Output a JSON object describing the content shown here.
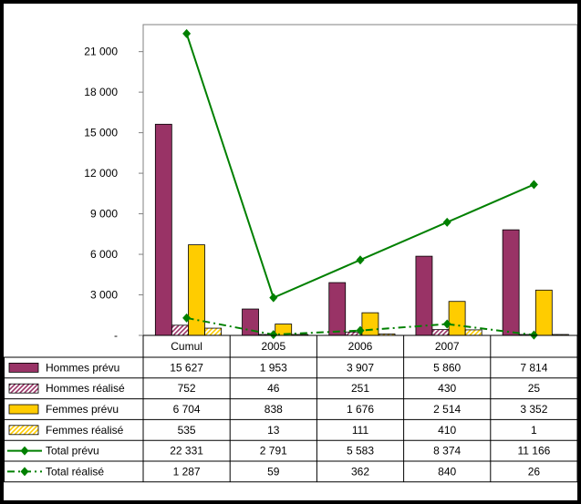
{
  "chart_data": {
    "type": "bar",
    "categories": [
      "Cumul",
      "2005",
      "2006",
      "2007",
      ""
    ],
    "y_ticks": [
      "-",
      "3 000",
      "6 000",
      "9 000",
      "12 000",
      "15 000",
      "18 000",
      "21 000"
    ],
    "ylim": [
      0,
      23000
    ],
    "grid": false,
    "series": [
      {
        "name": "Hommes prévu",
        "kind": "bar",
        "style": "solid",
        "color": "#993366",
        "values": [
          15627,
          1953,
          3907,
          5860,
          7814
        ],
        "labels": [
          "15 627",
          "1 953",
          "3 907",
          "5 860",
          "7 814"
        ]
      },
      {
        "name": "Hommes réalisé",
        "kind": "bar",
        "style": "hatched",
        "color": "#993366",
        "values": [
          752,
          46,
          251,
          430,
          25
        ],
        "labels": [
          "752",
          "46",
          "251",
          "430",
          "25"
        ]
      },
      {
        "name": "Femmes prévu",
        "kind": "bar",
        "style": "solid",
        "color": "#FFCC00",
        "values": [
          6704,
          838,
          1676,
          2514,
          3352
        ],
        "labels": [
          "6 704",
          "838",
          "1 676",
          "2 514",
          "3 352"
        ]
      },
      {
        "name": "Femmes réalisé",
        "kind": "bar",
        "style": "hatched",
        "color": "#FFCC00",
        "values": [
          535,
          13,
          111,
          410,
          1
        ],
        "labels": [
          "535",
          "13",
          "111",
          "410",
          "1"
        ]
      },
      {
        "name": "Total prévu",
        "kind": "line",
        "style": "solid",
        "color": "#008000",
        "values": [
          22331,
          2791,
          5583,
          8374,
          11166
        ],
        "labels": [
          "22 331",
          "2 791",
          "5 583",
          "8 374",
          "11 166"
        ]
      },
      {
        "name": "Total réalisé",
        "kind": "line",
        "style": "dashdot",
        "color": "#008000",
        "values": [
          1287,
          59,
          362,
          840,
          26
        ],
        "labels": [
          "1 287",
          "59",
          "362",
          "840",
          "26"
        ]
      }
    ]
  }
}
